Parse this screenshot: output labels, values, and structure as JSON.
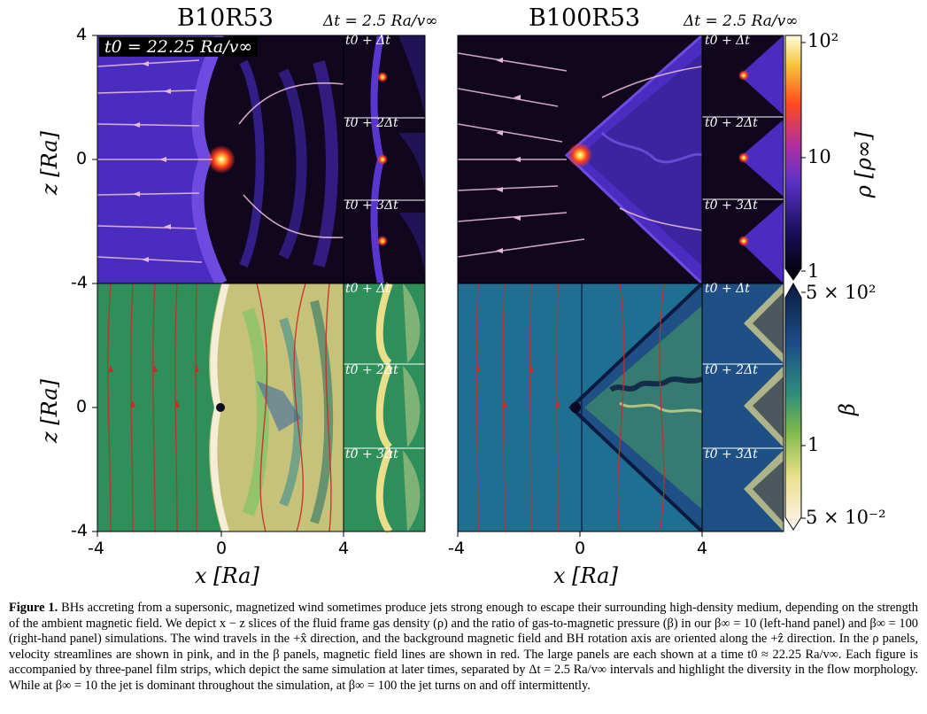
{
  "figure": {
    "left_panel": {
      "title": "B10R53",
      "dt_label": "Δt = 2.5 Ra/v∞",
      "time_label": "t0 = 22.25 Ra/v∞"
    },
    "right_panel": {
      "title": "B100R53",
      "dt_label": "Δt = 2.5 Ra/v∞"
    },
    "film_strip_labels": [
      "t0 + Δt",
      "t0 + 2Δt",
      "t0 + 3Δt"
    ],
    "x_axis": {
      "label": "x [Ra]",
      "ticks": [
        "-4",
        "0",
        "4"
      ]
    },
    "z_axis": {
      "label": "z [Ra]",
      "ticks": [
        "4",
        "0",
        "-4",
        "0",
        "-4"
      ]
    },
    "colorbar_rho": {
      "label": "ρ [ρ∞]",
      "ticks": [
        "10²",
        "10",
        "1"
      ],
      "scale": "log"
    },
    "colorbar_beta": {
      "label": "β",
      "ticks": [
        "5 × 10²",
        "1",
        "5 × 10⁻²"
      ],
      "scale": "log"
    },
    "colors": {
      "rho_background": "#10061e",
      "rho_wind": "#4a2cc0",
      "beta_background": "#2f8f5a",
      "beta_cone": "#1e4f85",
      "velocity_streamlines": "#e7b7d6",
      "field_lines": "#c0302a"
    }
  },
  "caption": {
    "label": "Figure 1.",
    "text": "BHs accreting from a supersonic, magnetized wind sometimes produce jets strong enough to escape their surrounding high-density medium, depending on the strength of the ambient magnetic field. We depict x − z slices of the fluid frame gas density (ρ) and the ratio of gas-to-magnetic pressure (β) in our β∞ = 10 (left-hand panel) and β∞ = 100 (right-hand panel) simulations. The wind travels in the +x̂ direction, and the background magnetic field and BH rotation axis are oriented along the +ẑ direction. In the ρ panels, velocity streamlines are shown in pink, and in the β panels, magnetic field lines are shown in red. The large panels are each shown at a time t0 ≈ 22.25 Ra/v∞. Each figure is accompanied by three-panel film strips, which depict the same simulation at later times, separated by Δt = 2.5 Ra/v∞ intervals and highlight the diversity in the flow morphology. While at β∞ = 10 the jet is dominant throughout the simulation, at β∞ = 100 the jet turns on and off intermittently."
  }
}
